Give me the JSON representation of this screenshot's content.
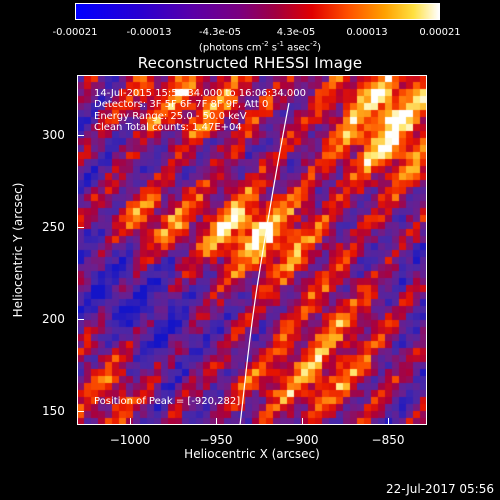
{
  "colorbar": {
    "ticks": [
      "-0.00021",
      "-0.00013",
      "-4.3e-05",
      "4.3e-05",
      "0.00013",
      "0.00021"
    ],
    "units_prefix": "(photons cm",
    "units_exp1": "-2",
    "units_mid1": " s",
    "units_exp2": "-1",
    "units_mid2": " asec",
    "units_exp3": "-2",
    "units_suffix": ")"
  },
  "title": "Reconstructed RHESSI Image",
  "info": {
    "time_range": "14-Jul-2015 15:56:34.000 to 16:06:34.000",
    "detectors": "Detectors: 3F 5F 6F 7F 8F 9F, Att 0",
    "energy": "Energy Range: 25.0 - 50.0 keV",
    "clean": "Clean    Total counts: 1.47E+04",
    "peak": "Position of Peak = [-920,282]"
  },
  "axes": {
    "xlabel": "Heliocentric X (arcsec)",
    "ylabel": "Heliocentric Y (arcsec)",
    "xticks": [
      "−1000",
      "−950",
      "−900",
      "−850"
    ],
    "yticks": [
      "150",
      "200",
      "250",
      "300"
    ],
    "xlim": [
      -1025,
      -825
    ],
    "ylim": [
      140,
      340
    ]
  },
  "timestamp": "22-Jul-2017 05:56",
  "colors": {
    "low": "#0000ff",
    "mid": "#800080",
    "high": "#ff2000",
    "peak": "#ffffff"
  }
}
